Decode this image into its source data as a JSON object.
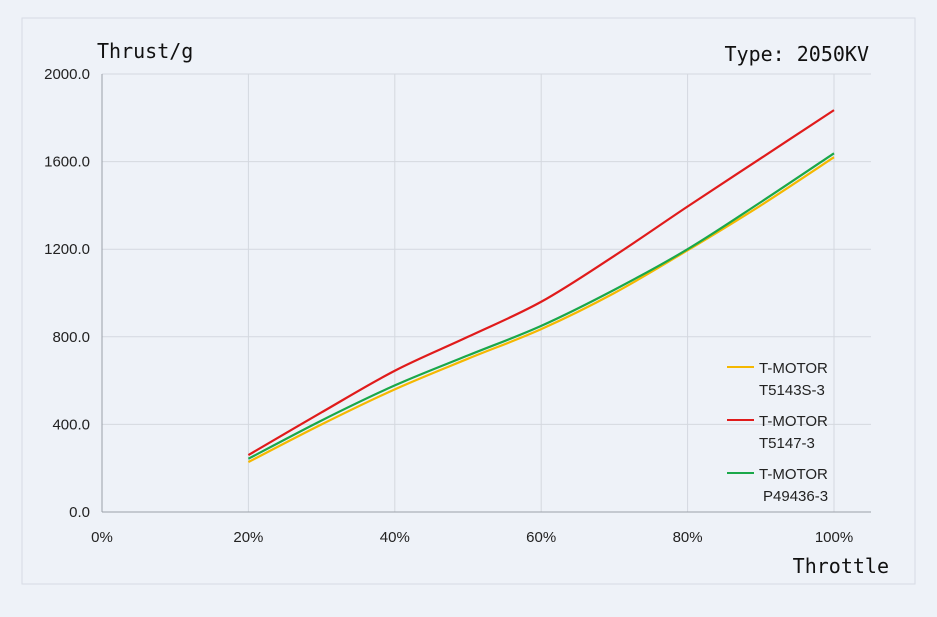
{
  "chart_data": {
    "type": "line",
    "ylabel": "Thrust/g",
    "xlabel": "Throttle",
    "annotation": "Type: 2050KV",
    "x_ticks": [
      "0%",
      "20%",
      "40%",
      "60%",
      "80%",
      "100%"
    ],
    "y_ticks": [
      "0.0",
      "400.0",
      "800.0",
      "1200.0",
      "1600.0",
      "2000.0"
    ],
    "xlim": [
      0,
      100
    ],
    "ylim": [
      0,
      2000
    ],
    "grid": true,
    "legend_position": "right",
    "x": [
      20,
      30,
      40,
      50,
      60,
      70,
      80,
      90,
      100
    ],
    "series": [
      {
        "name": "T-MOTOR",
        "name_line2": "T5143S-3",
        "color": "#f5b800",
        "values": [
          228,
          400,
          560,
          700,
          835,
          1000,
          1195,
          1400,
          1620
        ]
      },
      {
        "name": "T-MOTOR",
        "name_line2": "T5147-3",
        "color": "#e01b1b",
        "values": [
          260,
          455,
          645,
          800,
          960,
          1170,
          1395,
          1615,
          1835
        ]
      },
      {
        "name": "T-MOTOR",
        "name_line2": "P49436-3",
        "color": "#1aa84a",
        "values": [
          243,
          418,
          578,
          715,
          850,
          1015,
          1200,
          1415,
          1638
        ]
      }
    ]
  }
}
